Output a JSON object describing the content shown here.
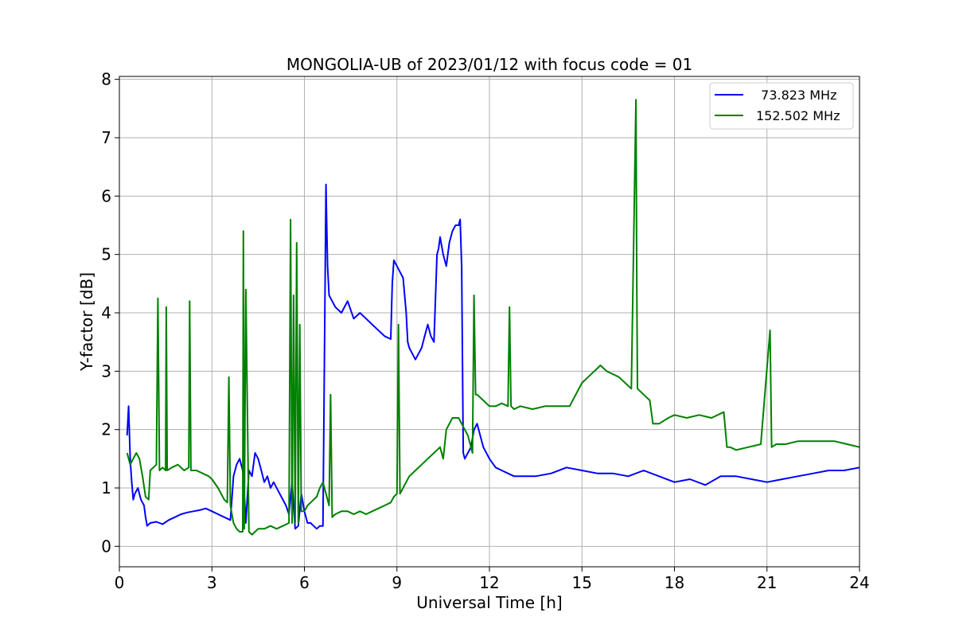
{
  "chart_data": {
    "type": "line",
    "title": "MONGOLIA-UB of 2023/01/12 with focus code = 01",
    "xlabel": "Universal Time [h]",
    "ylabel": "Y-factor [dB]",
    "xlim": [
      0,
      24
    ],
    "ylim": [
      -0.35,
      8.05
    ],
    "xticks": [
      "0",
      "3",
      "6",
      "9",
      "12",
      "15",
      "18",
      "21",
      "24"
    ],
    "yticks": [
      "0",
      "1",
      "2",
      "3",
      "4",
      "5",
      "6",
      "7",
      "8"
    ],
    "grid": true,
    "legend_position": "top-right",
    "series": [
      {
        "name": "  73.823 MHz",
        "color": "#0000ff",
        "x": [
          0.25,
          0.3,
          0.35,
          0.4,
          0.45,
          0.5,
          0.6,
          0.7,
          0.8,
          0.85,
          0.9,
          1.0,
          1.2,
          1.4,
          1.6,
          1.8,
          2.0,
          2.2,
          2.4,
          2.6,
          2.8,
          3.0,
          3.2,
          3.4,
          3.6,
          3.7,
          3.8,
          3.9,
          4.0,
          4.05,
          4.1,
          4.2,
          4.3,
          4.4,
          4.5,
          4.6,
          4.7,
          4.8,
          4.9,
          5.0,
          5.2,
          5.4,
          5.5,
          5.6,
          5.7,
          5.8,
          5.9,
          6.0,
          6.1,
          6.2,
          6.3,
          6.4,
          6.5,
          6.6,
          6.7,
          6.72,
          6.75,
          6.8,
          6.9,
          7.0,
          7.2,
          7.4,
          7.6,
          7.8,
          8.0,
          8.2,
          8.4,
          8.6,
          8.8,
          8.85,
          8.9,
          9.0,
          9.1,
          9.2,
          9.3,
          9.35,
          9.4,
          9.5,
          9.6,
          9.7,
          9.8,
          9.9,
          10.0,
          10.1,
          10.2,
          10.3,
          10.35,
          10.4,
          10.5,
          10.6,
          10.7,
          10.8,
          10.9,
          11.0,
          11.05,
          11.1,
          11.15,
          11.2,
          11.3,
          11.4,
          11.5,
          11.6,
          11.7,
          11.8,
          12.0,
          12.2,
          12.4,
          12.6,
          12.8,
          13.0,
          13.5,
          14.0,
          14.5,
          15.0,
          15.5,
          16.0,
          16.5,
          17.0,
          17.5,
          18.0,
          18.5,
          19.0,
          19.5,
          20.0,
          20.5,
          21.0,
          21.5,
          22.0,
          22.5,
          23.0,
          23.5,
          24.0
        ],
        "y": [
          1.9,
          2.4,
          1.5,
          1.1,
          0.8,
          0.9,
          1.0,
          0.8,
          0.7,
          0.5,
          0.35,
          0.4,
          0.42,
          0.38,
          0.45,
          0.5,
          0.55,
          0.58,
          0.6,
          0.62,
          0.65,
          0.6,
          0.55,
          0.5,
          0.45,
          1.2,
          1.4,
          1.5,
          1.3,
          0.9,
          0.4,
          1.3,
          1.2,
          1.6,
          1.5,
          1.3,
          1.1,
          1.2,
          1.0,
          1.1,
          0.9,
          0.7,
          0.55,
          1.1,
          0.3,
          0.35,
          0.9,
          0.6,
          0.4,
          0.4,
          0.35,
          0.3,
          0.35,
          0.35,
          6.2,
          5.6,
          4.8,
          4.3,
          4.2,
          4.1,
          4.0,
          4.2,
          3.9,
          4.0,
          3.9,
          3.8,
          3.7,
          3.6,
          3.55,
          4.5,
          4.9,
          4.8,
          4.7,
          4.6,
          4.0,
          3.5,
          3.4,
          3.3,
          3.2,
          3.3,
          3.4,
          3.6,
          3.8,
          3.6,
          3.5,
          5.0,
          5.1,
          5.3,
          5.0,
          4.8,
          5.2,
          5.4,
          5.5,
          5.5,
          5.6,
          4.8,
          1.6,
          1.5,
          1.6,
          1.7,
          2.0,
          2.1,
          1.9,
          1.7,
          1.5,
          1.35,
          1.3,
          1.25,
          1.2,
          1.2,
          1.2,
          1.25,
          1.35,
          1.3,
          1.25,
          1.25,
          1.2,
          1.3,
          1.2,
          1.1,
          1.15,
          1.05,
          1.2,
          1.2,
          1.15,
          1.1,
          1.15,
          1.2,
          1.25,
          1.3,
          1.3,
          1.35
        ]
      },
      {
        "name": "152.502 MHz",
        "color": "#008000",
        "x": [
          0.25,
          0.35,
          0.45,
          0.55,
          0.65,
          0.75,
          0.85,
          0.95,
          1.0,
          1.1,
          1.2,
          1.25,
          1.3,
          1.4,
          1.5,
          1.52,
          1.55,
          1.7,
          1.9,
          2.1,
          2.25,
          2.28,
          2.32,
          2.5,
          2.7,
          2.9,
          3.0,
          3.2,
          3.4,
          3.5,
          3.55,
          3.6,
          3.7,
          3.8,
          3.9,
          4.0,
          4.02,
          4.05,
          4.1,
          4.2,
          4.3,
          4.4,
          4.5,
          4.7,
          4.9,
          5.1,
          5.3,
          5.5,
          5.55,
          5.6,
          5.65,
          5.7,
          5.75,
          5.8,
          5.85,
          5.9,
          6.0,
          6.1,
          6.2,
          6.3,
          6.4,
          6.5,
          6.6,
          6.7,
          6.8,
          6.85,
          6.9,
          7.0,
          7.2,
          7.4,
          7.6,
          7.8,
          8.0,
          8.2,
          8.4,
          8.6,
          8.8,
          8.9,
          9.0,
          9.05,
          9.1,
          9.2,
          9.4,
          9.6,
          9.8,
          10.0,
          10.2,
          10.4,
          10.5,
          10.6,
          10.8,
          11.0,
          11.1,
          11.2,
          11.3,
          11.45,
          11.5,
          11.55,
          11.6,
          11.8,
          12.0,
          12.2,
          12.4,
          12.6,
          12.65,
          12.7,
          12.8,
          13.0,
          13.4,
          13.8,
          14.2,
          14.6,
          14.8,
          15.0,
          15.2,
          15.4,
          15.6,
          15.8,
          16.0,
          16.2,
          16.4,
          16.6,
          16.75,
          16.78,
          16.8,
          17.0,
          17.2,
          17.3,
          17.5,
          17.8,
          18.0,
          18.4,
          18.8,
          19.2,
          19.6,
          19.7,
          19.8,
          20.0,
          20.4,
          20.8,
          21.1,
          21.15,
          21.3,
          21.6,
          22.0,
          22.4,
          22.8,
          23.2,
          23.6,
          24.0
        ],
        "y": [
          1.6,
          1.4,
          1.5,
          1.6,
          1.5,
          1.2,
          0.85,
          0.8,
          1.3,
          1.35,
          1.4,
          4.25,
          1.3,
          1.35,
          1.3,
          4.1,
          1.3,
          1.35,
          1.4,
          1.3,
          1.35,
          4.2,
          1.3,
          1.3,
          1.25,
          1.2,
          1.15,
          1.0,
          0.8,
          0.75,
          2.9,
          0.7,
          0.4,
          0.3,
          0.25,
          0.25,
          5.4,
          0.3,
          4.4,
          0.25,
          0.2,
          0.25,
          0.3,
          0.3,
          0.35,
          0.3,
          0.35,
          0.4,
          5.6,
          0.4,
          4.3,
          0.4,
          5.2,
          0.4,
          3.8,
          0.6,
          0.6,
          0.7,
          0.75,
          0.8,
          0.85,
          1.0,
          1.1,
          0.9,
          0.7,
          2.6,
          0.5,
          0.55,
          0.6,
          0.6,
          0.55,
          0.6,
          0.55,
          0.6,
          0.65,
          0.7,
          0.75,
          0.85,
          0.9,
          3.8,
          0.9,
          1.0,
          1.2,
          1.3,
          1.4,
          1.5,
          1.6,
          1.7,
          1.5,
          2.0,
          2.2,
          2.2,
          2.1,
          2.0,
          1.9,
          1.6,
          4.3,
          2.6,
          2.6,
          2.5,
          2.4,
          2.4,
          2.45,
          2.4,
          4.1,
          2.4,
          2.35,
          2.4,
          2.35,
          2.4,
          2.4,
          2.4,
          2.6,
          2.8,
          2.9,
          3.0,
          3.1,
          3.0,
          2.95,
          2.9,
          2.8,
          2.7,
          7.65,
          4.4,
          2.7,
          2.6,
          2.5,
          2.1,
          2.1,
          2.2,
          2.25,
          2.2,
          2.25,
          2.2,
          2.3,
          1.7,
          1.7,
          1.65,
          1.7,
          1.75,
          3.7,
          1.7,
          1.75,
          1.75,
          1.8,
          1.8,
          1.8,
          1.8,
          1.75,
          1.7
        ]
      }
    ]
  }
}
